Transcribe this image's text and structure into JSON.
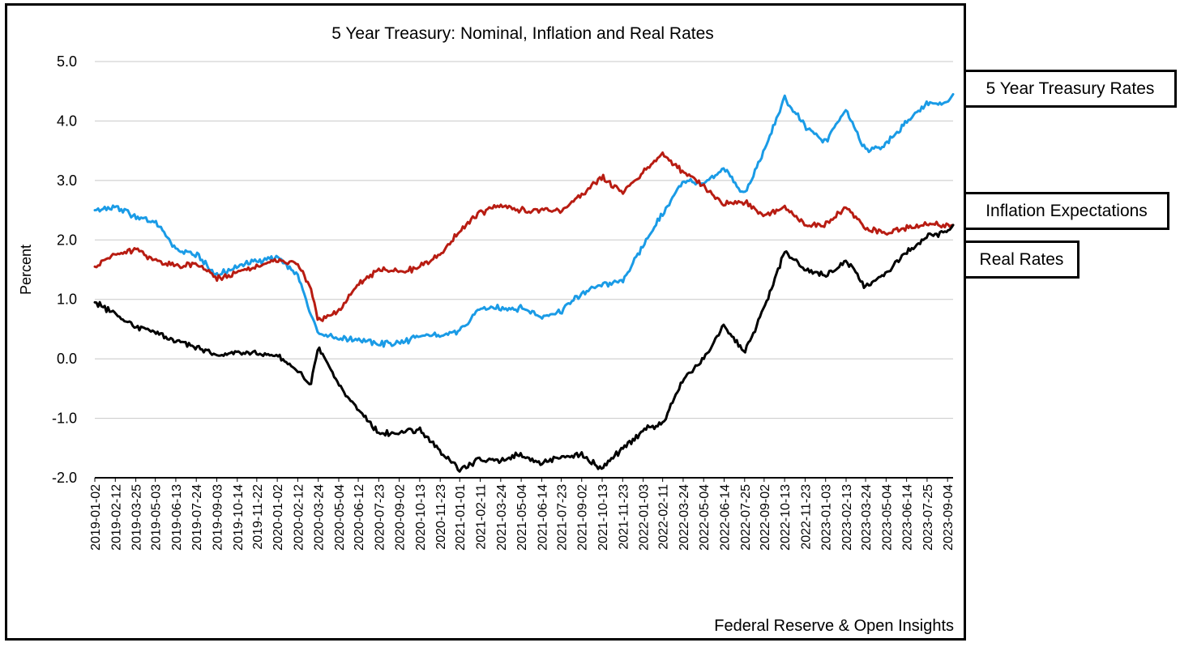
{
  "chart_data": {
    "type": "line",
    "title": "5 Year Treasury: Nominal, Inflation and Real Rates",
    "ylabel": "Percent",
    "xlabel": "",
    "ylim": [
      -2.0,
      5.0
    ],
    "yticks": [
      "-2.0",
      "-1.0",
      "0.0",
      "1.0",
      "2.0",
      "3.0",
      "4.0",
      "5.0"
    ],
    "grid": true,
    "source": "Federal Reserve & Open Insights",
    "x_tick_labels": [
      "2019-01-02",
      "2019-02-12",
      "2019-03-25",
      "2019-05-03",
      "2019-06-13",
      "2019-07-24",
      "2019-09-03",
      "2019-10-14",
      "2019-11-22",
      "2020-01-02",
      "2020-02-12",
      "2020-03-24",
      "2020-05-04",
      "2020-06-12",
      "2020-07-23",
      "2020-09-02",
      "2020-10-13",
      "2020-11-23",
      "2021-01-01",
      "2021-02-11",
      "2021-03-24",
      "2021-05-04",
      "2021-06-14",
      "2021-07-23",
      "2021-09-02",
      "2021-10-13",
      "2021-11-23",
      "2022-01-03",
      "2022-02-11",
      "2022-03-24",
      "2022-05-04",
      "2022-06-14",
      "2022-07-25",
      "2022-09-02",
      "2022-10-13",
      "2022-11-23",
      "2023-01-03",
      "2023-02-13",
      "2023-03-24",
      "2023-05-04",
      "2023-06-14",
      "2023-07-25",
      "2023-09-04"
    ],
    "x": [
      "2019-01-02",
      "2019-02-12",
      "2019-03-25",
      "2019-05-03",
      "2019-06-13",
      "2019-07-24",
      "2019-09-03",
      "2019-10-14",
      "2019-11-22",
      "2020-01-02",
      "2020-02-12",
      "2020-03-09",
      "2020-03-24",
      "2020-05-04",
      "2020-06-12",
      "2020-07-23",
      "2020-09-02",
      "2020-10-13",
      "2020-11-23",
      "2021-01-01",
      "2021-02-11",
      "2021-03-24",
      "2021-05-04",
      "2021-06-14",
      "2021-07-23",
      "2021-09-02",
      "2021-10-13",
      "2021-11-23",
      "2022-01-03",
      "2022-02-11",
      "2022-03-24",
      "2022-05-04",
      "2022-06-14",
      "2022-07-25",
      "2022-09-02",
      "2022-10-13",
      "2022-11-23",
      "2023-01-03",
      "2023-02-13",
      "2023-03-24",
      "2023-05-04",
      "2023-06-14",
      "2023-07-25",
      "2023-09-04",
      "2023-09-15"
    ],
    "series": [
      {
        "name": "5 Year Treasury Rates",
        "color": "#1a9be6",
        "values": [
          2.5,
          2.55,
          2.4,
          2.3,
          1.85,
          1.75,
          1.4,
          1.55,
          1.65,
          1.7,
          1.4,
          0.75,
          0.45,
          0.35,
          0.32,
          0.25,
          0.27,
          0.38,
          0.4,
          0.45,
          0.85,
          0.85,
          0.85,
          0.72,
          0.8,
          1.1,
          1.25,
          1.3,
          1.9,
          2.45,
          3.0,
          2.95,
          3.2,
          2.75,
          3.5,
          4.4,
          3.9,
          3.65,
          4.2,
          3.5,
          3.6,
          4.0,
          4.3,
          4.3,
          4.45
        ]
      },
      {
        "name": "Inflation Expectations",
        "color": "#b81c12",
        "values": [
          1.55,
          1.75,
          1.85,
          1.65,
          1.55,
          1.6,
          1.35,
          1.45,
          1.55,
          1.65,
          1.6,
          1.2,
          0.65,
          0.8,
          1.25,
          1.5,
          1.45,
          1.55,
          1.75,
          2.15,
          2.45,
          2.6,
          2.5,
          2.5,
          2.5,
          2.75,
          3.05,
          2.8,
          3.15,
          3.45,
          3.15,
          2.9,
          2.6,
          2.65,
          2.4,
          2.55,
          2.25,
          2.25,
          2.55,
          2.2,
          2.1,
          2.2,
          2.25,
          2.25,
          2.25
        ]
      },
      {
        "name": "Real Rates",
        "color": "#000000",
        "values": [
          0.95,
          0.75,
          0.55,
          0.45,
          0.3,
          0.2,
          0.05,
          0.1,
          0.1,
          0.05,
          -0.2,
          -0.45,
          0.2,
          -0.45,
          -0.85,
          -1.25,
          -1.25,
          -1.2,
          -1.55,
          -1.85,
          -1.7,
          -1.7,
          -1.6,
          -1.75,
          -1.65,
          -1.6,
          -1.85,
          -1.5,
          -1.2,
          -1.1,
          -0.35,
          0.0,
          0.55,
          0.1,
          0.85,
          1.8,
          1.5,
          1.4,
          1.65,
          1.2,
          1.45,
          1.8,
          2.05,
          2.15,
          2.25
        ]
      }
    ]
  },
  "legend_callouts": [
    {
      "label": "5 Year Treasury Rates"
    },
    {
      "label": "Inflation Expectations"
    },
    {
      "label": "Real Rates"
    }
  ]
}
